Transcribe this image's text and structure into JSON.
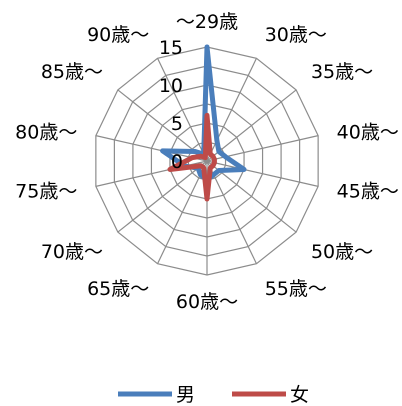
{
  "chart_data": {
    "type": "radar",
    "categories": [
      "～29歳",
      "30歳～",
      "35歳～",
      "40歳～",
      "45歳～",
      "50歳～",
      "55歳～",
      "60歳～",
      "65歳～",
      "70歳～",
      "75歳～",
      "80歳～",
      "85歳～",
      "90歳～"
    ],
    "ticks": [
      "0",
      "5",
      "10",
      "15"
    ],
    "rlim": [
      0,
      15
    ],
    "grid": true,
    "legend_position": "bottom",
    "series": [
      {
        "name": "男",
        "color": "#4a7ebb",
        "values": [
          15,
          3,
          2,
          2.5,
          5,
          2,
          2,
          2.5,
          2,
          1.5,
          3,
          6,
          2,
          1
        ]
      },
      {
        "name": "女",
        "color": "#be4b48",
        "values": [
          6,
          1,
          1,
          1,
          1,
          1,
          1,
          5,
          1,
          1,
          5,
          2,
          1,
          0.5
        ]
      }
    ]
  }
}
